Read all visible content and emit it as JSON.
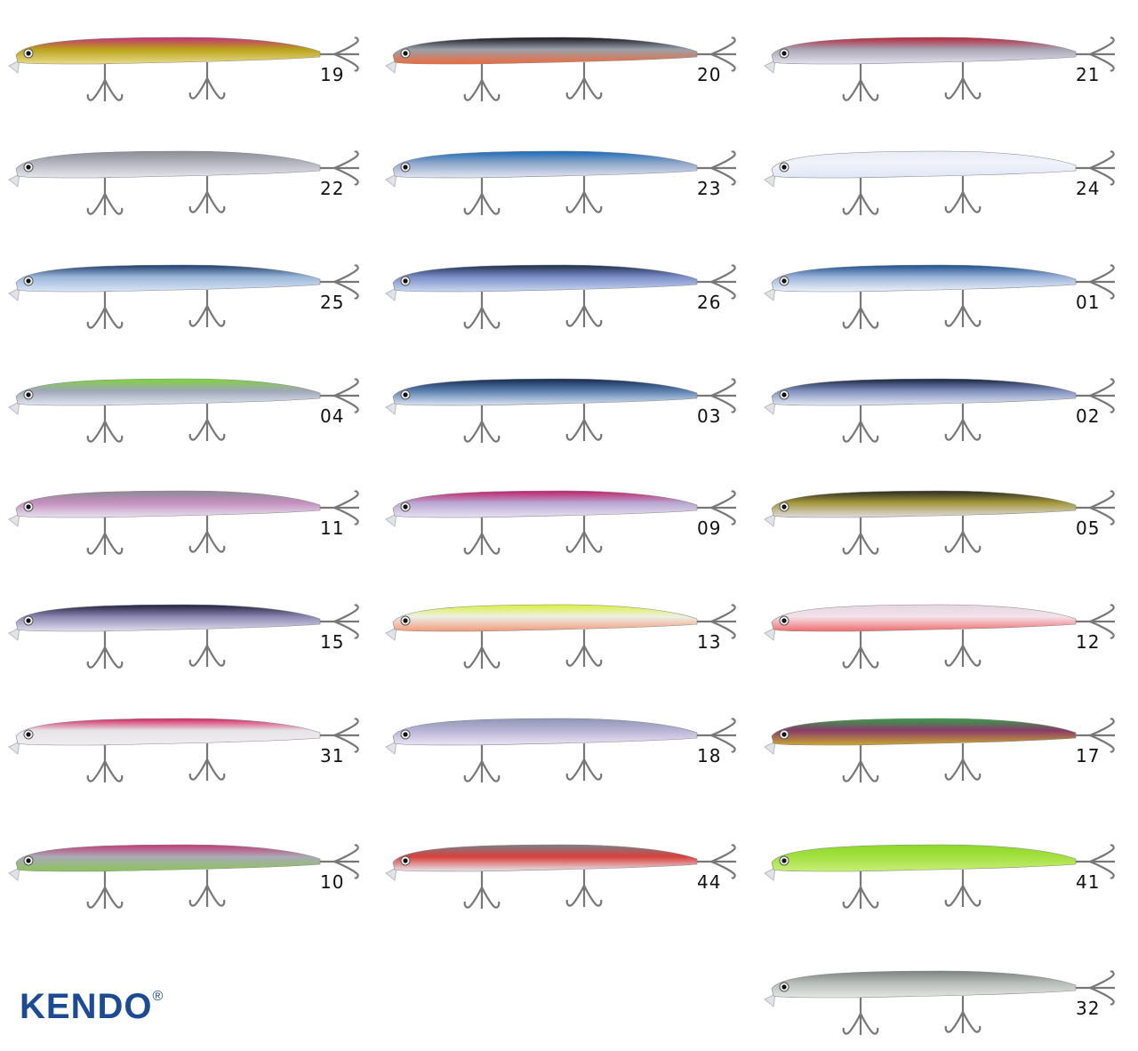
{
  "brand": {
    "name": "KENDO",
    "mark": "®",
    "color": "#1c4b91"
  },
  "lures": [
    {
      "code": "19",
      "top": "#c2307a",
      "mid": "#b9a21a",
      "belly": "#e8dc8a"
    },
    {
      "code": "20",
      "top": "#15171c",
      "mid": "#9aa0ab",
      "belly": "#f06a3a"
    },
    {
      "code": "21",
      "top": "#b3273a",
      "mid": "#a8a5b4",
      "belly": "#e4e2ee"
    },
    {
      "code": "22",
      "top": "#8c8c95",
      "mid": "#b6b6c2",
      "belly": "#e6e6ee"
    },
    {
      "code": "23",
      "top": "#1a6ab8",
      "mid": "#8fa6c8",
      "belly": "#e4e6f3"
    },
    {
      "code": "24",
      "top": "#e8ecf6",
      "mid": "#f0f3fa",
      "belly": "#dfe6f6"
    },
    {
      "code": "25",
      "top": "#1d3c6a",
      "mid": "#9ab7db",
      "belly": "#dbe5f6"
    },
    {
      "code": "26",
      "top": "#1d2d4a",
      "mid": "#7a8dc8",
      "belly": "#c9d8f2"
    },
    {
      "code": "01",
      "top": "#1d4f8c",
      "mid": "#9ab3d9",
      "belly": "#eef2fa"
    },
    {
      "code": "04",
      "top": "#7fd43a",
      "mid": "#9ea6b8",
      "belly": "#e2e6f0"
    },
    {
      "code": "03",
      "top": "#152a50",
      "mid": "#5a7fae",
      "belly": "#dde4f2"
    },
    {
      "code": "02",
      "top": "#16233f",
      "mid": "#7e8fbc",
      "belly": "#e4e8f4"
    },
    {
      "code": "11",
      "top": "#8e8a96",
      "mid": "#c58fbf",
      "belly": "#e6e3ee"
    },
    {
      "code": "09",
      "top": "#c02068",
      "mid": "#b7a6d0",
      "belly": "#e8e2f2"
    },
    {
      "code": "05",
      "top": "#2a2a22",
      "mid": "#a4973a",
      "belly": "#dedde6"
    },
    {
      "code": "15",
      "top": "#231f3d",
      "mid": "#8b86b2",
      "belly": "#e2e0ee"
    },
    {
      "code": "13",
      "top": "#d8f03a",
      "mid": "#eef0e6",
      "belly": "#f29a7a"
    },
    {
      "code": "12",
      "top": "#e7d6e0",
      "mid": "#f2e2ea",
      "belly": "#f06c6c"
    },
    {
      "code": "31",
      "top": "#d2245f",
      "mid": "#e7e3e7",
      "belly": "#f0eef2"
    },
    {
      "code": "18",
      "top": "#8e97b5",
      "mid": "#b9b4d6",
      "belly": "#eae4f4"
    },
    {
      "code": "17",
      "top": "#35a04a",
      "mid": "#8a3a6a",
      "belly": "#c8a830"
    },
    {
      "code": "10",
      "top": "#c23a76",
      "mid": "#a8aab6",
      "belly": "#8cc45a"
    },
    {
      "code": "44",
      "top": "#7a7e88",
      "mid": "#d9403a",
      "belly": "#e6e7ee"
    },
    {
      "code": "41",
      "top": "#8cd82a",
      "mid": "#a4e040",
      "belly": "#c8ee78"
    },
    {
      "code": "32",
      "top": "#7c8480",
      "mid": "#b6bcb8",
      "belly": "#e4e8e6"
    }
  ]
}
